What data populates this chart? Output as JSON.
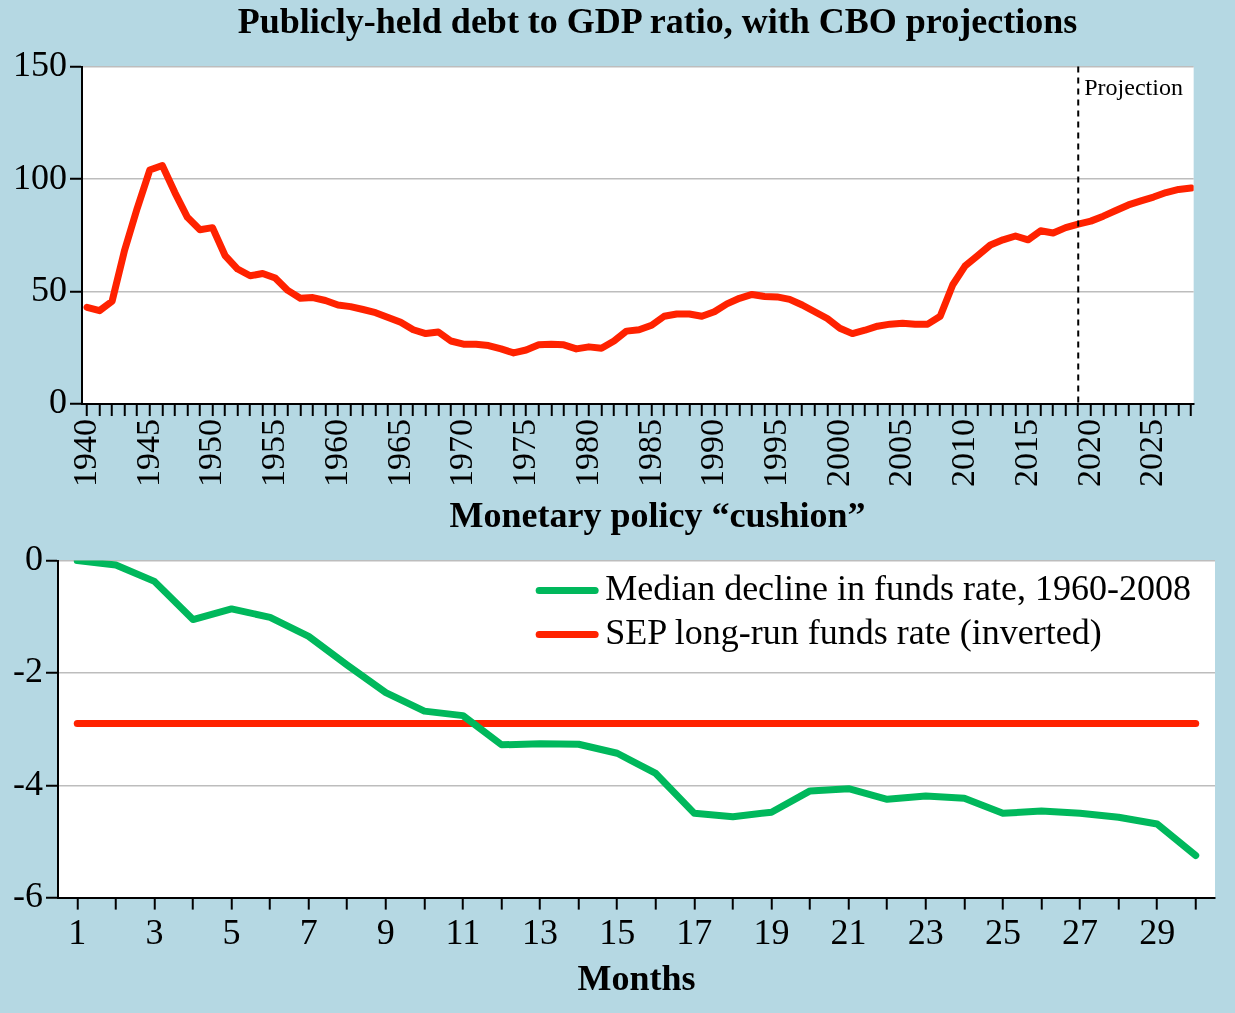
{
  "chart_data": [
    {
      "type": "line",
      "title": "Publicly-held debt to GDP ratio, with CBO projections",
      "x": [
        1940,
        1941,
        1942,
        1943,
        1944,
        1945,
        1946,
        1947,
        1948,
        1949,
        1950,
        1951,
        1952,
        1953,
        1954,
        1955,
        1956,
        1957,
        1958,
        1959,
        1960,
        1961,
        1962,
        1963,
        1964,
        1965,
        1966,
        1967,
        1968,
        1969,
        1970,
        1971,
        1972,
        1973,
        1974,
        1975,
        1976,
        1977,
        1978,
        1979,
        1980,
        1981,
        1982,
        1983,
        1984,
        1985,
        1986,
        1987,
        1988,
        1989,
        1990,
        1991,
        1992,
        1993,
        1994,
        1995,
        1996,
        1997,
        1998,
        1999,
        2000,
        2001,
        2002,
        2003,
        2004,
        2005,
        2006,
        2007,
        2008,
        2009,
        2010,
        2011,
        2012,
        2013,
        2014,
        2015,
        2016,
        2017,
        2018,
        2019,
        2020,
        2021,
        2022,
        2023,
        2024,
        2025,
        2026,
        2027,
        2028
      ],
      "series": [
        {
          "color": "#ff2200",
          "values": [
            43,
            41.5,
            45.7,
            68.5,
            87,
            104,
            106,
            94,
            83,
            77.5,
            78.4,
            66,
            60,
            57,
            58,
            56,
            50.5,
            47,
            47.3,
            46,
            44,
            43.3,
            42,
            40.6,
            38.5,
            36.3,
            33,
            31.3,
            32,
            28,
            26.6,
            26.6,
            26,
            24.5,
            22.7,
            24,
            26.3,
            26.6,
            26.3,
            24.5,
            25.4,
            24.8,
            28,
            32.4,
            33,
            35,
            39,
            40,
            40,
            39,
            41,
            44.5,
            47,
            48.7,
            47.8,
            47.6,
            46.5,
            44,
            41,
            38,
            33.7,
            31.3,
            32.8,
            34.6,
            35.5,
            35.9,
            35.5,
            35.5,
            39,
            53,
            61.5,
            66,
            70.7,
            73,
            74.7,
            73,
            77,
            76,
            78.4,
            80,
            81.3,
            83.5,
            86,
            88.5,
            90.3,
            92,
            94,
            95.4,
            96
          ]
        }
      ],
      "xlim": [
        1939.6,
        2028.2
      ],
      "xticks": [
        1940,
        {
          "value": 1941,
          "label": null
        },
        {
          "value": 1942,
          "label": null
        },
        {
          "value": 1943,
          "label": null
        },
        {
          "value": 1944,
          "label": null
        },
        1945,
        {
          "value": 1946,
          "label": null
        },
        {
          "value": 1947,
          "label": null
        },
        {
          "value": 1948,
          "label": null
        },
        {
          "value": 1949,
          "label": null
        },
        1950,
        {
          "value": 1951,
          "label": null
        },
        {
          "value": 1952,
          "label": null
        },
        {
          "value": 1953,
          "label": null
        },
        {
          "value": 1954,
          "label": null
        },
        1955,
        {
          "value": 1956,
          "label": null
        },
        {
          "value": 1957,
          "label": null
        },
        {
          "value": 1958,
          "label": null
        },
        {
          "value": 1959,
          "label": null
        },
        1960,
        {
          "value": 1961,
          "label": null
        },
        {
          "value": 1962,
          "label": null
        },
        {
          "value": 1963,
          "label": null
        },
        {
          "value": 1964,
          "label": null
        },
        1965,
        {
          "value": 1966,
          "label": null
        },
        {
          "value": 1967,
          "label": null
        },
        {
          "value": 1968,
          "label": null
        },
        {
          "value": 1969,
          "label": null
        },
        1970,
        {
          "value": 1971,
          "label": null
        },
        {
          "value": 1972,
          "label": null
        },
        {
          "value": 1973,
          "label": null
        },
        {
          "value": 1974,
          "label": null
        },
        1975,
        {
          "value": 1976,
          "label": null
        },
        {
          "value": 1977,
          "label": null
        },
        {
          "value": 1978,
          "label": null
        },
        {
          "value": 1979,
          "label": null
        },
        1980,
        {
          "value": 1981,
          "label": null
        },
        {
          "value": 1982,
          "label": null
        },
        {
          "value": 1983,
          "label": null
        },
        {
          "value": 1984,
          "label": null
        },
        1985,
        {
          "value": 1986,
          "label": null
        },
        {
          "value": 1987,
          "label": null
        },
        {
          "value": 1988,
          "label": null
        },
        {
          "value": 1989,
          "label": null
        },
        1990,
        {
          "value": 1991,
          "label": null
        },
        {
          "value": 1992,
          "label": null
        },
        {
          "value": 1993,
          "label": null
        },
        {
          "value": 1994,
          "label": null
        },
        1995,
        {
          "value": 1996,
          "label": null
        },
        {
          "value": 1997,
          "label": null
        },
        {
          "value": 1998,
          "label": null
        },
        {
          "value": 1999,
          "label": null
        },
        2000,
        {
          "value": 2001,
          "label": null
        },
        {
          "value": 2002,
          "label": null
        },
        {
          "value": 2003,
          "label": null
        },
        {
          "value": 2004,
          "label": null
        },
        2005,
        {
          "value": 2006,
          "label": null
        },
        {
          "value": 2007,
          "label": null
        },
        {
          "value": 2008,
          "label": null
        },
        {
          "value": 2009,
          "label": null
        },
        2010,
        {
          "value": 2011,
          "label": null
        },
        {
          "value": 2012,
          "label": null
        },
        {
          "value": 2013,
          "label": null
        },
        {
          "value": 2014,
          "label": null
        },
        2015,
        {
          "value": 2016,
          "label": null
        },
        {
          "value": 2017,
          "label": null
        },
        {
          "value": 2018,
          "label": null
        },
        {
          "value": 2019,
          "label": null
        },
        2020,
        {
          "value": 2021,
          "label": null
        },
        {
          "value": 2022,
          "label": null
        },
        {
          "value": 2023,
          "label": null
        },
        {
          "value": 2024,
          "label": null
        },
        2025,
        {
          "value": 2026,
          "label": null
        },
        {
          "value": 2027,
          "label": null
        },
        {
          "value": 2028,
          "label": null
        }
      ],
      "ylim": [
        0,
        150
      ],
      "yticks": [
        0,
        50,
        100,
        150
      ],
      "grid": "y",
      "marker": "none",
      "ref_lines": [
        {
          "axis": "x",
          "value": 2019,
          "label": "Projection",
          "color": "#000000",
          "line_style": "dashed"
        }
      ]
    },
    {
      "type": "line",
      "title": "Monetary policy “cushion”",
      "xlabel": "Months",
      "x": [
        1,
        2,
        3,
        4,
        5,
        6,
        7,
        8,
        9,
        10,
        11,
        12,
        13,
        14,
        15,
        16,
        17,
        18,
        19,
        20,
        21,
        22,
        23,
        24,
        25,
        26,
        27,
        28,
        29,
        30
      ],
      "series": [
        {
          "name": "Median decline in funds rate, 1960-2008",
          "color": "#00b85c",
          "values": [
            0,
            -0.08,
            -0.37,
            -1.05,
            -0.86,
            -1.01,
            -1.35,
            -1.86,
            -2.35,
            -2.68,
            -2.76,
            -3.28,
            -3.26,
            -3.27,
            -3.43,
            -3.79,
            -4.5,
            -4.56,
            -4.48,
            -4.1,
            -4.06,
            -4.25,
            -4.19,
            -4.23,
            -4.5,
            -4.46,
            -4.5,
            -4.57,
            -4.69,
            -5.25
          ]
        },
        {
          "name": "SEP long-run funds rate (inverted)",
          "color": "#ff2200",
          "values": [
            -2.9,
            -2.9,
            -2.9,
            -2.9,
            -2.9,
            -2.9,
            -2.9,
            -2.9,
            -2.9,
            -2.9,
            -2.9,
            -2.9,
            -2.9,
            -2.9,
            -2.9,
            -2.9,
            -2.9,
            -2.9,
            -2.9,
            -2.9,
            -2.9,
            -2.9,
            -2.9,
            -2.9,
            -2.9,
            -2.9,
            -2.9,
            -2.9,
            -2.9,
            -2.9
          ]
        }
      ],
      "xlim": [
        0.5,
        30.5
      ],
      "xticks": [
        1,
        {
          "value": 2,
          "label": null
        },
        3,
        {
          "value": 4,
          "label": null
        },
        5,
        {
          "value": 6,
          "label": null
        },
        7,
        {
          "value": 8,
          "label": null
        },
        9,
        {
          "value": 10,
          "label": null
        },
        11,
        {
          "value": 12,
          "label": null
        },
        13,
        {
          "value": 14,
          "label": null
        },
        15,
        {
          "value": 16,
          "label": null
        },
        17,
        {
          "value": 18,
          "label": null
        },
        19,
        {
          "value": 20,
          "label": null
        },
        21,
        {
          "value": 22,
          "label": null
        },
        23,
        {
          "value": 24,
          "label": null
        },
        25,
        {
          "value": 26,
          "label": null
        },
        27,
        {
          "value": 28,
          "label": null
        },
        29,
        {
          "value": 30,
          "label": null
        }
      ],
      "ylim": [
        -6,
        0
      ],
      "yticks": [
        -6,
        -4,
        -2,
        0
      ],
      "grid": "y",
      "legend": "top right",
      "marker": "none"
    }
  ]
}
